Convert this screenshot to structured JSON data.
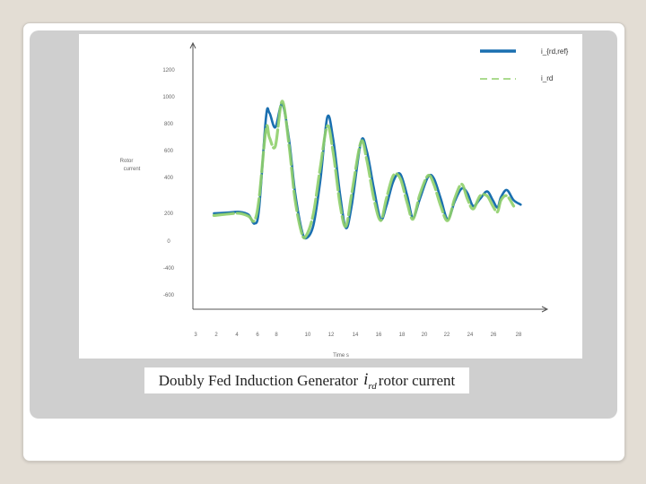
{
  "chart_data": {
    "type": "line",
    "title": "",
    "xlabel": "Time s",
    "ylabel": "Rotor current",
    "x_ticks": [
      "3",
      "2",
      "4",
      "6",
      "8",
      "10",
      "12",
      "14",
      "16",
      "18",
      "20",
      "22",
      "24",
      "26",
      "28"
    ],
    "y_ticks": [
      1200,
      1000,
      800,
      600,
      400,
      200,
      0,
      -400,
      -600
    ],
    "grid": false,
    "legend_position": "top-right",
    "series": [
      {
        "name": "i_{rd,ref}",
        "color": "#1a6fb0",
        "style": "solid",
        "points": [
          [
            1.8,
            200
          ],
          [
            3.0,
            205
          ],
          [
            4.0,
            210
          ],
          [
            4.8,
            190
          ],
          [
            5.3,
            130
          ],
          [
            5.7,
            230
          ],
          [
            6.3,
            860
          ],
          [
            6.6,
            890
          ],
          [
            7.1,
            790
          ],
          [
            7.7,
            950
          ],
          [
            8.3,
            700
          ],
          [
            8.8,
            350
          ],
          [
            9.4,
            80
          ],
          [
            9.8,
            30
          ],
          [
            10.4,
            120
          ],
          [
            11.0,
            430
          ],
          [
            11.6,
            860
          ],
          [
            12.1,
            710
          ],
          [
            12.7,
            330
          ],
          [
            13.2,
            100
          ],
          [
            13.7,
            250
          ],
          [
            14.5,
            690
          ],
          [
            15.0,
            630
          ],
          [
            15.6,
            380
          ],
          [
            16.2,
            160
          ],
          [
            16.7,
            250
          ],
          [
            17.3,
            420
          ],
          [
            17.9,
            470
          ],
          [
            18.5,
            320
          ],
          [
            19.0,
            170
          ],
          [
            19.6,
            300
          ],
          [
            20.3,
            450
          ],
          [
            20.8,
            440
          ],
          [
            21.4,
            300
          ],
          [
            22.0,
            160
          ],
          [
            22.6,
            280
          ],
          [
            23.2,
            370
          ],
          [
            23.7,
            340
          ],
          [
            24.2,
            250
          ],
          [
            24.8,
            300
          ],
          [
            25.4,
            350
          ],
          [
            25.9,
            290
          ],
          [
            26.3,
            240
          ],
          [
            26.6,
            310
          ],
          [
            27.1,
            360
          ],
          [
            27.7,
            290
          ],
          [
            28.3,
            260
          ]
        ]
      },
      {
        "name": "i_rd",
        "color": "#8fcf6a",
        "style": "dashed",
        "points": [
          [
            1.8,
            185
          ],
          [
            3.0,
            195
          ],
          [
            4.0,
            200
          ],
          [
            4.8,
            180
          ],
          [
            5.3,
            150
          ],
          [
            5.7,
            300
          ],
          [
            6.3,
            780
          ],
          [
            6.6,
            720
          ],
          [
            7.1,
            660
          ],
          [
            7.7,
            970
          ],
          [
            8.3,
            660
          ],
          [
            8.8,
            300
          ],
          [
            9.4,
            60
          ],
          [
            9.8,
            50
          ],
          [
            10.4,
            200
          ],
          [
            11.0,
            520
          ],
          [
            11.6,
            800
          ],
          [
            12.1,
            620
          ],
          [
            12.7,
            260
          ],
          [
            13.2,
            110
          ],
          [
            13.7,
            330
          ],
          [
            14.5,
            690
          ],
          [
            15.0,
            570
          ],
          [
            15.6,
            310
          ],
          [
            16.2,
            150
          ],
          [
            16.7,
            300
          ],
          [
            17.3,
            460
          ],
          [
            17.9,
            440
          ],
          [
            18.5,
            270
          ],
          [
            19.0,
            160
          ],
          [
            19.6,
            330
          ],
          [
            20.3,
            460
          ],
          [
            20.8,
            400
          ],
          [
            21.4,
            250
          ],
          [
            22.0,
            150
          ],
          [
            22.6,
            300
          ],
          [
            23.2,
            400
          ],
          [
            23.7,
            300
          ],
          [
            24.2,
            230
          ],
          [
            24.8,
            320
          ],
          [
            25.4,
            320
          ],
          [
            25.9,
            250
          ],
          [
            26.3,
            210
          ],
          [
            26.6,
            290
          ],
          [
            27.1,
            320
          ],
          [
            27.7,
            250
          ]
        ]
      }
    ]
  },
  "caption": {
    "text_before": "Doubly Fed Induction Generator",
    "math_symbol": "i",
    "math_subscript": "rd",
    "text_after": "rotor current"
  }
}
